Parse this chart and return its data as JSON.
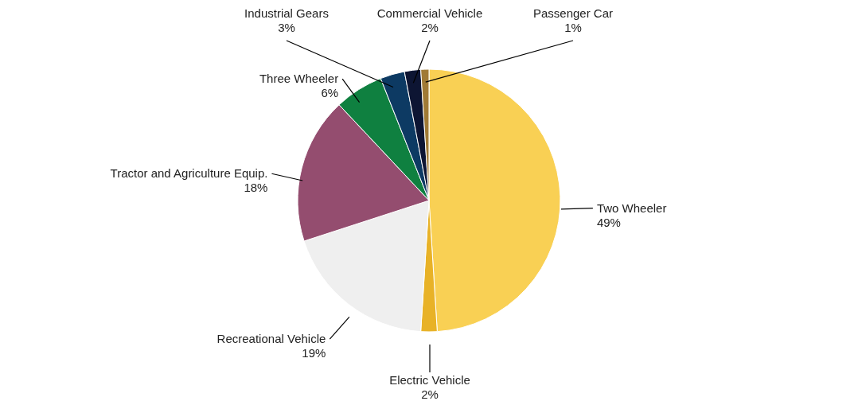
{
  "chart_data": {
    "type": "pie",
    "categories": [
      "Two Wheeler",
      "Electric Vehicle",
      "Recreational Vehicle",
      "Tractor and Agriculture Equip.",
      "Three Wheeler",
      "Industrial Gears",
      "Commercial Vehicle",
      "Passenger Car"
    ],
    "values": [
      49,
      2,
      19,
      18,
      6,
      3,
      2,
      1
    ],
    "colors": [
      "#f9d054",
      "#e8b227",
      "#efefef",
      "#944d6f",
      "#0f8040",
      "#0d3a63",
      "#0d1533",
      "#a07a35"
    ],
    "value_labels": [
      "49%",
      "2%",
      "19%",
      "18%",
      "6%",
      "3%",
      "2%",
      "1%"
    ]
  }
}
